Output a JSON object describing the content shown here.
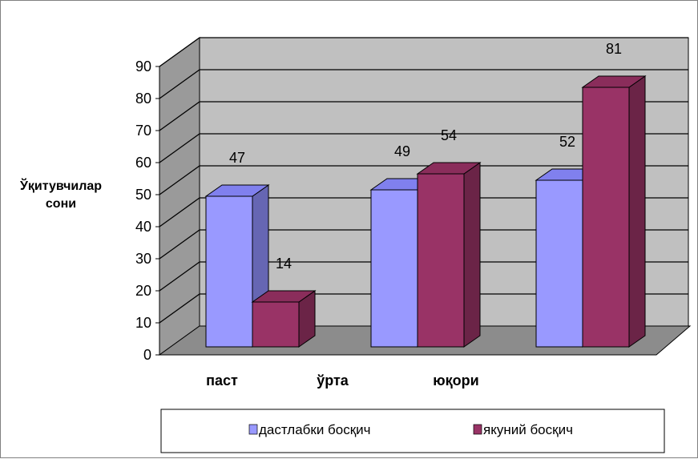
{
  "chart_data": {
    "type": "bar",
    "title": "",
    "xlabel": "",
    "ylabel_lines": [
      "Ўқитувчилар",
      "сони"
    ],
    "categories": [
      "паст",
      "ўрта",
      "юқори"
    ],
    "series": [
      {
        "name": "дастлабки босқич",
        "values": [
          47,
          49,
          52
        ]
      },
      {
        "name": "якуний босқич",
        "values": [
          14,
          54,
          81
        ]
      }
    ],
    "ylim": [
      0,
      90
    ],
    "ytick_step": 10,
    "grid": true,
    "legend_position": "bottom",
    "colors": {
      "series1_front": "#9999ff",
      "series1_top": "#8080ee",
      "series1_side": "#6666b3",
      "series2_front": "#993366",
      "series2_top": "#8a2d5b",
      "series2_side": "#6b2447",
      "wall": "#c0c0c0",
      "wall_side": "#9a9a9a",
      "floor": "#8c8c8c"
    }
  }
}
